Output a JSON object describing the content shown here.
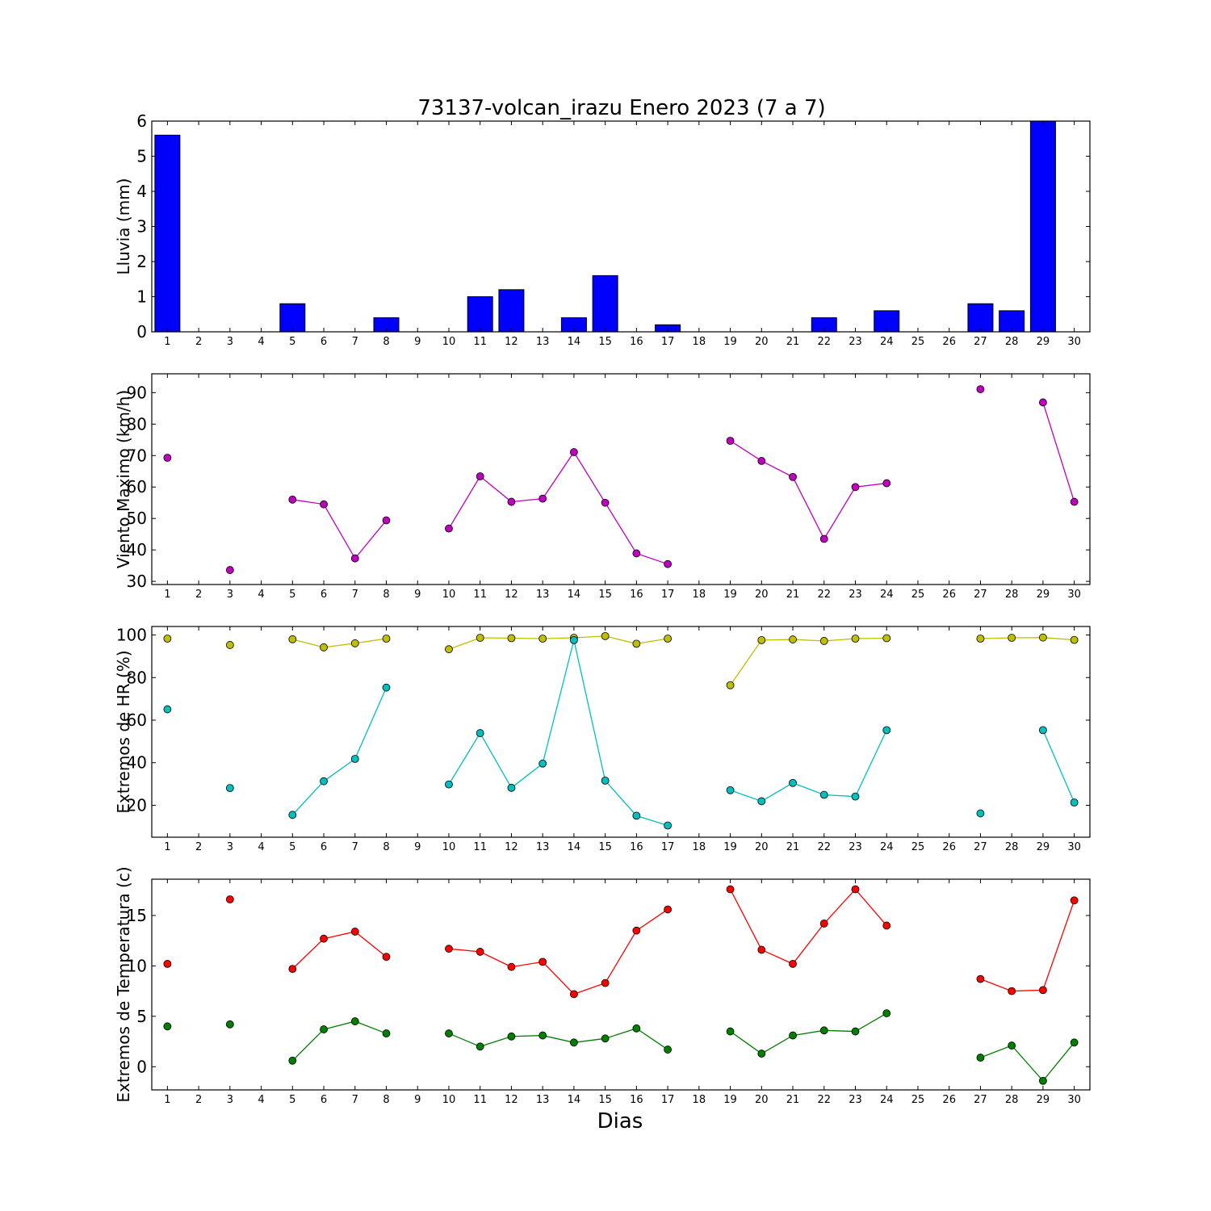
{
  "title": "73137-volcan_irazu Enero 2023  (7 a 7)",
  "xlabel": "Dias",
  "chart_data": [
    {
      "type": "bar",
      "ylabel": "Lluvia (mm)",
      "ylim": [
        0,
        6
      ],
      "yticks": [
        0,
        1,
        2,
        3,
        4,
        5,
        6
      ],
      "days": [
        1,
        2,
        3,
        4,
        5,
        6,
        7,
        8,
        9,
        10,
        11,
        12,
        13,
        14,
        15,
        16,
        17,
        18,
        19,
        20,
        21,
        22,
        23,
        24,
        25,
        26,
        27,
        28,
        29,
        30
      ],
      "series": [
        {
          "name": "",
          "color": "#0000ff",
          "values": [
            5.6,
            0,
            0,
            0,
            0.8,
            0,
            0,
            0.4,
            0,
            0,
            1.0,
            1.2,
            0,
            0.4,
            1.6,
            0,
            0.2,
            0,
            0,
            0,
            0,
            0.4,
            0,
            0.6,
            0,
            0,
            0.8,
            0.6,
            6.0,
            0
          ]
        }
      ]
    },
    {
      "type": "line",
      "ylabel": "Viento Maximo (km/h)",
      "ylim": [
        29,
        96
      ],
      "yticks": [
        30,
        40,
        50,
        60,
        70,
        80,
        90
      ],
      "days": [
        1,
        2,
        3,
        4,
        5,
        6,
        7,
        8,
        9,
        10,
        11,
        12,
        13,
        14,
        15,
        16,
        17,
        18,
        19,
        20,
        21,
        22,
        23,
        24,
        25,
        26,
        27,
        28,
        29,
        30
      ],
      "series": [
        {
          "name": "",
          "color": "#bf00bf",
          "values": [
            69.3,
            null,
            33.6,
            null,
            56.0,
            54.5,
            37.3,
            49.4,
            null,
            46.8,
            63.4,
            55.3,
            56.3,
            71.1,
            55.0,
            38.9,
            35.5,
            null,
            74.7,
            68.3,
            63.2,
            43.5,
            60.0,
            61.2,
            null,
            null,
            91.1,
            null,
            86.9,
            55.3
          ]
        }
      ]
    },
    {
      "type": "line",
      "ylabel": "Extremos de HR (%)",
      "ylim": [
        5,
        104
      ],
      "yticks": [
        20,
        40,
        60,
        80,
        100
      ],
      "days": [
        1,
        2,
        3,
        4,
        5,
        6,
        7,
        8,
        9,
        10,
        11,
        12,
        13,
        14,
        15,
        16,
        17,
        18,
        19,
        20,
        21,
        22,
        23,
        24,
        25,
        26,
        27,
        28,
        29,
        30
      ],
      "series": [
        {
          "name": "",
          "color": "#bfbf00",
          "values": [
            98.3,
            null,
            95.3,
            null,
            98.0,
            94.2,
            96.1,
            98.3,
            null,
            93.3,
            98.7,
            98.5,
            98.3,
            98.7,
            99.5,
            95.9,
            98.3,
            null,
            76.4,
            97.6,
            97.9,
            97.2,
            98.3,
            98.5,
            null,
            null,
            98.3,
            98.7,
            98.8,
            97.7
          ]
        },
        {
          "name": "",
          "color": "#00bfbf",
          "values": [
            65.1,
            null,
            28.1,
            null,
            15.5,
            31.3,
            41.8,
            75.3,
            null,
            29.8,
            53.9,
            28.2,
            39.6,
            97.6,
            31.6,
            15.1,
            10.5,
            null,
            27.1,
            21.9,
            30.5,
            24.9,
            24.1,
            55.3,
            null,
            null,
            16.2,
            null,
            55.3,
            21.3
          ]
        }
      ]
    },
    {
      "type": "line",
      "ylabel": "Extremos de Temperatura (c)",
      "ylim": [
        -2.3,
        18.6
      ],
      "yticks": [
        0,
        5,
        10,
        15
      ],
      "days": [
        1,
        2,
        3,
        4,
        5,
        6,
        7,
        8,
        9,
        10,
        11,
        12,
        13,
        14,
        15,
        16,
        17,
        18,
        19,
        20,
        21,
        22,
        23,
        24,
        25,
        26,
        27,
        28,
        29,
        30
      ],
      "series": [
        {
          "name": "",
          "color": "#ff0000",
          "values": [
            10.2,
            null,
            16.6,
            null,
            9.7,
            12.7,
            13.4,
            10.9,
            null,
            11.7,
            11.4,
            9.9,
            10.4,
            7.2,
            8.3,
            13.5,
            15.6,
            null,
            17.6,
            11.6,
            10.2,
            14.2,
            17.6,
            14.0,
            null,
            null,
            8.7,
            7.5,
            7.6,
            16.5
          ]
        },
        {
          "name": "",
          "color": "#007f00",
          "values": [
            4.0,
            null,
            4.2,
            null,
            0.6,
            3.7,
            4.5,
            3.3,
            null,
            3.3,
            2.0,
            3.0,
            3.1,
            2.4,
            2.8,
            3.8,
            1.7,
            null,
            3.5,
            1.3,
            3.1,
            3.6,
            3.5,
            5.3,
            null,
            null,
            0.9,
            2.1,
            -1.4,
            2.4
          ]
        }
      ]
    }
  ]
}
